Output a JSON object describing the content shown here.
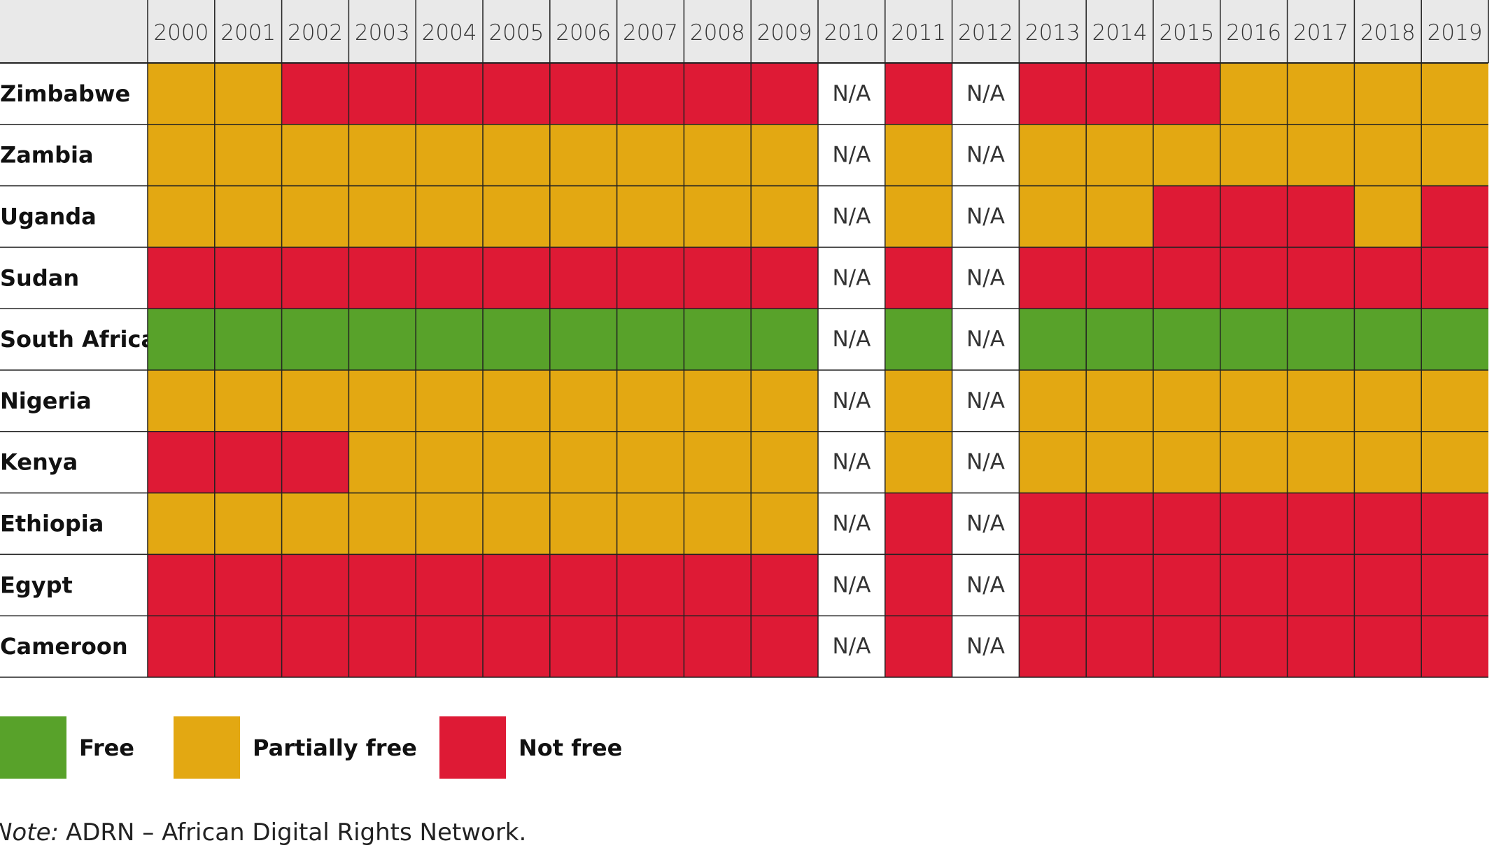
{
  "table": {
    "columns": [
      "2000",
      "2001",
      "2002",
      "2003",
      "2004",
      "2005",
      "2006",
      "2007",
      "2008",
      "2009",
      "2010",
      "2011",
      "2012",
      "2013",
      "2014",
      "2015",
      "2016",
      "2017",
      "2018",
      "2019"
    ],
    "rows": [
      {
        "label": "Zimbabwe",
        "cells": [
          "Partially free",
          "Partially free",
          "Not free",
          "Not free",
          "Not free",
          "Not free",
          "Not free",
          "Not free",
          "Not free",
          "Not free",
          "N/A",
          "Not free",
          "N/A",
          "Not free",
          "Not free",
          "Not free",
          "Partially free",
          "Partially free",
          "Partially free",
          "Partially free"
        ]
      },
      {
        "label": "Zambia",
        "cells": [
          "Partially free",
          "Partially free",
          "Partially free",
          "Partially free",
          "Partially free",
          "Partially free",
          "Partially free",
          "Partially free",
          "Partially free",
          "Partially free",
          "N/A",
          "Partially free",
          "N/A",
          "Partially free",
          "Partially free",
          "Partially free",
          "Partially free",
          "Partially free",
          "Partially free",
          "Partially free"
        ]
      },
      {
        "label": "Uganda",
        "cells": [
          "Partially free",
          "Partially free",
          "Partially free",
          "Partially free",
          "Partially free",
          "Partially free",
          "Partially free",
          "Partially free",
          "Partially free",
          "Partially free",
          "N/A",
          "Partially free",
          "N/A",
          "Partially free",
          "Partially free",
          "Not free",
          "Not free",
          "Not free",
          "Partially free",
          "Not free"
        ]
      },
      {
        "label": "Sudan",
        "cells": [
          "Not free",
          "Not free",
          "Not free",
          "Not free",
          "Not free",
          "Not free",
          "Not free",
          "Not free",
          "Not free",
          "Not free",
          "N/A",
          "Not free",
          "N/A",
          "Not free",
          "Not free",
          "Not free",
          "Not free",
          "Not free",
          "Not free",
          "Not free"
        ]
      },
      {
        "label": "South Africa",
        "cells": [
          "Free",
          "Free",
          "Free",
          "Free",
          "Free",
          "Free",
          "Free",
          "Free",
          "Free",
          "Free",
          "N/A",
          "Free",
          "N/A",
          "Free",
          "Free",
          "Free",
          "Free",
          "Free",
          "Free",
          "Free"
        ]
      },
      {
        "label": "Nigeria",
        "cells": [
          "Partially free",
          "Partially free",
          "Partially free",
          "Partially free",
          "Partially free",
          "Partially free",
          "Partially free",
          "Partially free",
          "Partially free",
          "Partially free",
          "N/A",
          "Partially free",
          "N/A",
          "Partially free",
          "Partially free",
          "Partially free",
          "Partially free",
          "Partially free",
          "Partially free",
          "Partially free"
        ]
      },
      {
        "label": "Kenya",
        "cells": [
          "Not free",
          "Not free",
          "Not free",
          "Partially free",
          "Partially free",
          "Partially free",
          "Partially free",
          "Partially free",
          "Partially free",
          "Partially free",
          "N/A",
          "Partially free",
          "N/A",
          "Partially free",
          "Partially free",
          "Partially free",
          "Partially free",
          "Partially free",
          "Partially free",
          "Partially free"
        ]
      },
      {
        "label": "Ethiopia",
        "cells": [
          "Partially free",
          "Partially free",
          "Partially free",
          "Partially free",
          "Partially free",
          "Partially free",
          "Partially free",
          "Partially free",
          "Partially free",
          "Partially free",
          "N/A",
          "Not free",
          "N/A",
          "Not free",
          "Not free",
          "Not free",
          "Not free",
          "Not free",
          "Not free",
          "Not free"
        ]
      },
      {
        "label": "Egypt",
        "cells": [
          "Not free",
          "Not free",
          "Not free",
          "Not free",
          "Not free",
          "Not free",
          "Not free",
          "Not free",
          "Not free",
          "Not free",
          "N/A",
          "Not free",
          "N/A",
          "Not free",
          "Not free",
          "Not free",
          "Not free",
          "Not free",
          "Not free",
          "Not free"
        ]
      },
      {
        "label": "Cameroon",
        "cells": [
          "Not free",
          "Not free",
          "Not free",
          "Not free",
          "Not free",
          "Not free",
          "Not free",
          "Not free",
          "Not free",
          "Not free",
          "N/A",
          "Not free",
          "N/A",
          "Not free",
          "Not free",
          "Not free",
          "Not free",
          "Not free",
          "Not free",
          "Not free"
        ]
      }
    ]
  },
  "legend": [
    {
      "label": "Free",
      "color": "#58a22a"
    },
    {
      "label": "Partially free",
      "color": "#e3a812"
    },
    {
      "label": "Not free",
      "color": "#de1a35"
    }
  ],
  "note": {
    "label": "Note:",
    "text": "ADRN – African Digital Rights Network."
  }
}
